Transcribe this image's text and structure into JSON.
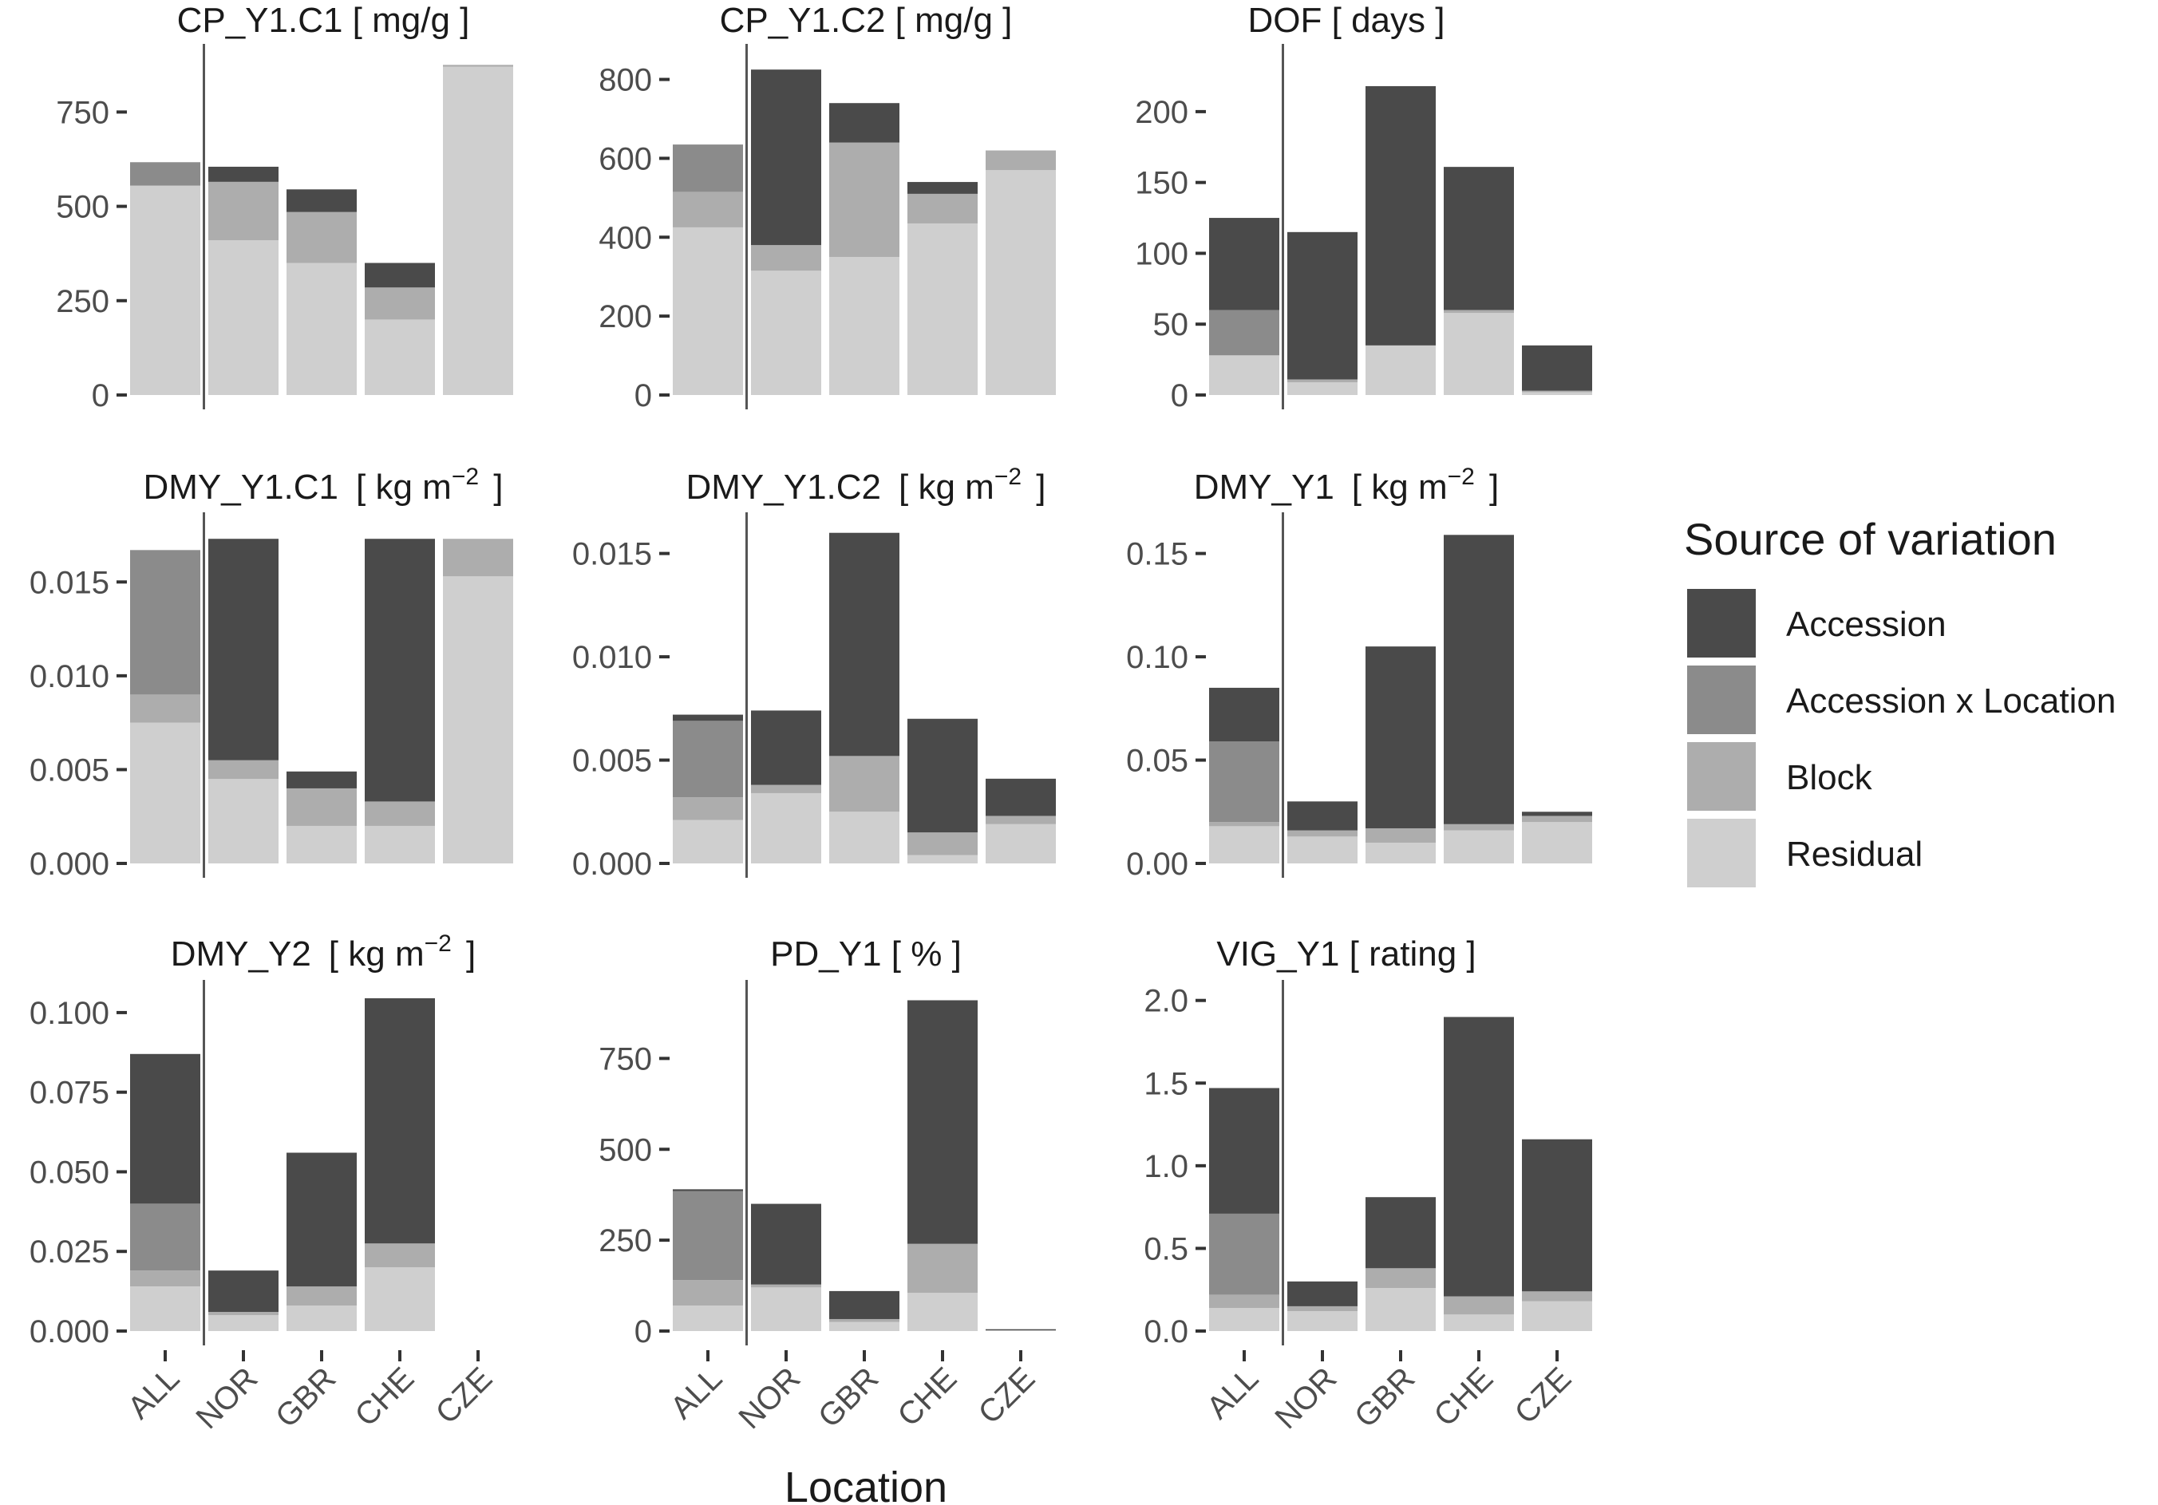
{
  "chart_data": {
    "type": "bar",
    "stacked": true,
    "xlabel": "Location",
    "categories": [
      "ALL",
      "NOR",
      "GBR",
      "CHE",
      "CZE"
    ],
    "legend": {
      "title": "Source of variation",
      "position": "right",
      "entries": [
        {
          "name": "Accession",
          "color": "#4a4a4a"
        },
        {
          "name": "Accession x Location",
          "color": "#8b8b8b"
        },
        {
          "name": "Block",
          "color": "#adadad"
        },
        {
          "name": "Residual",
          "color": "#cfcfcf"
        }
      ]
    },
    "series_order": [
      "Residual",
      "Block",
      "Accession x Location",
      "Accession"
    ],
    "panels": [
      {
        "title": "CP_Y1.C1 [ mg/g ]",
        "title_text": "CP_Y1.C1 [ mg/g ]",
        "ylim": [
          0,
          920
        ],
        "yticks": [
          0,
          250,
          500,
          750
        ],
        "ytick_labels": [
          "0",
          "250",
          "500",
          "750"
        ],
        "show_x": false,
        "values": {
          "Residual": [
            555,
            410,
            350,
            200,
            870
          ],
          "Block": [
            0,
            155,
            135,
            85,
            5
          ],
          "Accession x Location": [
            62,
            0,
            0,
            0,
            0
          ],
          "Accession": [
            0,
            40,
            60,
            65,
            0
          ]
        }
      },
      {
        "title": "CP_Y1.C2 [ mg/g ]",
        "title_text": "CP_Y1.C2 [ mg/g ]",
        "ylim": [
          0,
          880
        ],
        "yticks": [
          0,
          200,
          400,
          600,
          800
        ],
        "ytick_labels": [
          "0",
          "200",
          "400",
          "600",
          "800"
        ],
        "show_x": false,
        "values": {
          "Residual": [
            425,
            315,
            350,
            435,
            570
          ],
          "Block": [
            90,
            65,
            290,
            75,
            50
          ],
          "Accession x Location": [
            120,
            0,
            0,
            0,
            0
          ],
          "Accession": [
            0,
            445,
            100,
            30,
            0
          ]
        }
      },
      {
        "title": "DOF [ days ]",
        "title_text": "DOF [ days ]",
        "ylim": [
          0,
          245
        ],
        "yticks": [
          0,
          50,
          100,
          150,
          200
        ],
        "ytick_labels": [
          "0",
          "50",
          "100",
          "150",
          "200"
        ],
        "show_x": false,
        "values": {
          "Residual": [
            28,
            9,
            35,
            58,
            2
          ],
          "Block": [
            0,
            2,
            0,
            2,
            1
          ],
          "Accession x Location": [
            32,
            0,
            0,
            0,
            0
          ],
          "Accession": [
            65,
            104,
            183,
            101,
            32
          ]
        }
      },
      {
        "title": "DMY_Y1.C1 [ kg m-2 ]",
        "title_text": "DMY_Y1.C1",
        "ylim": [
          0,
          0.0185
        ],
        "yticks": [
          0,
          0.005,
          0.01,
          0.015
        ],
        "ytick_labels": [
          "0.000",
          "0.005",
          "0.010",
          "0.015"
        ],
        "show_x": false,
        "values": {
          "Residual": [
            0.0075,
            0.0045,
            0.002,
            0.002,
            0.0153
          ],
          "Block": [
            0.0015,
            0.001,
            0.002,
            0.0013,
            0.002
          ],
          "Accession x Location": [
            0.0077,
            0,
            0,
            0,
            0
          ],
          "Accession": [
            0,
            0.0118,
            0.0009,
            0.014,
            0
          ]
        }
      },
      {
        "title": "DMY_Y1.C2 [ kg m-2 ]",
        "title_text": "DMY_Y1.C2",
        "ylim": [
          0,
          0.0168
        ],
        "yticks": [
          0,
          0.005,
          0.01,
          0.015
        ],
        "ytick_labels": [
          "0.000",
          "0.005",
          "0.010",
          "0.015"
        ],
        "show_x": false,
        "values": {
          "Residual": [
            0.0021,
            0.0034,
            0.0025,
            0.0004,
            0.0019
          ],
          "Block": [
            0.0011,
            0.0004,
            0.0027,
            0.0011,
            0.0004
          ],
          "Accession x Location": [
            0.0037,
            0,
            0,
            0,
            0
          ],
          "Accession": [
            0.0003,
            0.0036,
            0.0108,
            0.0055,
            0.0018
          ]
        }
      },
      {
        "title": "DMY_Y1 [ kg m-2 ]",
        "title_text": "DMY_Y1",
        "ylim": [
          0,
          0.168
        ],
        "yticks": [
          0,
          0.05,
          0.1,
          0.15
        ],
        "ytick_labels": [
          "0.00",
          "0.05",
          "0.10",
          "0.15"
        ],
        "show_x": false,
        "values": {
          "Residual": [
            0.018,
            0.013,
            0.01,
            0.016,
            0.02
          ],
          "Block": [
            0.002,
            0.003,
            0.007,
            0.003,
            0.003
          ],
          "Accession x Location": [
            0.039,
            0,
            0,
            0,
            0
          ],
          "Accession": [
            0.026,
            0.014,
            0.088,
            0.14,
            0.002
          ]
        }
      },
      {
        "title": "DMY_Y2 [ kg m-2 ]",
        "title_text": "DMY_Y2",
        "ylim": [
          0,
          0.109
        ],
        "yticks": [
          0,
          0.025,
          0.05,
          0.075,
          0.1
        ],
        "ytick_labels": [
          "0.000",
          "0.025",
          "0.050",
          "0.075",
          "0.100"
        ],
        "show_x": true,
        "values": {
          "Residual": [
            0.014,
            0.005,
            0.008,
            0.02,
            0
          ],
          "Block": [
            0.005,
            0.001,
            0.006,
            0.0075,
            0
          ],
          "Accession x Location": [
            0.021,
            0,
            0,
            0,
            0
          ],
          "Accession": [
            0.047,
            0.013,
            0.042,
            0.077,
            0
          ]
        }
      },
      {
        "title": "PD_Y1 [ % ]",
        "title_text": "PD_Y1 [ % ]",
        "ylim": [
          0,
          955
        ],
        "yticks": [
          0,
          250,
          500,
          750
        ],
        "ytick_labels": [
          "0",
          "250",
          "500",
          "750"
        ],
        "show_x": true,
        "values": {
          "Residual": [
            70,
            120,
            25,
            105,
            2
          ],
          "Block": [
            70,
            8,
            8,
            135,
            0
          ],
          "Accession x Location": [
            245,
            0,
            0,
            0,
            0
          ],
          "Accession": [
            5,
            222,
            77,
            670,
            3
          ]
        }
      },
      {
        "title": "VIG_Y1 [ rating ]",
        "title_text": "VIG_Y1 [ rating ]",
        "ylim": [
          0,
          2.1
        ],
        "yticks": [
          0,
          0.5,
          1,
          1.5,
          2
        ],
        "ytick_labels": [
          "0.0",
          "0.5",
          "1.0",
          "1.5",
          "2.0"
        ],
        "show_x": true,
        "values": {
          "Residual": [
            0.14,
            0.12,
            0.26,
            0.1,
            0.18
          ],
          "Block": [
            0.08,
            0.03,
            0.12,
            0.11,
            0.06
          ],
          "Accession x Location": [
            0.49,
            0,
            0,
            0,
            0
          ],
          "Accession": [
            0.76,
            0.15,
            0.43,
            1.69,
            0.92
          ]
        }
      }
    ]
  }
}
